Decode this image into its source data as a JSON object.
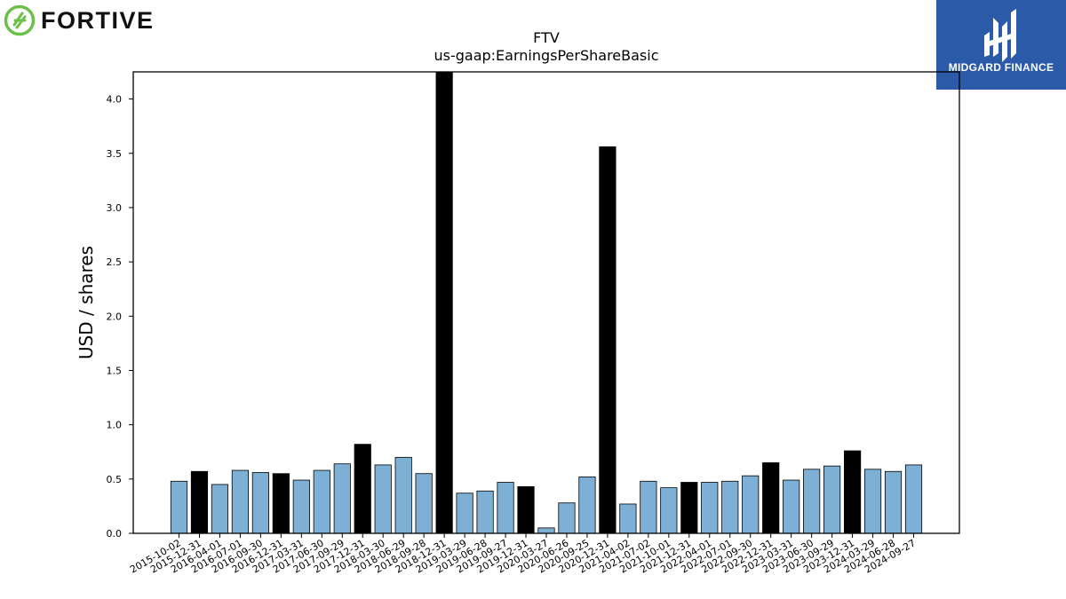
{
  "brand": {
    "logo_text": "FORTIVE",
    "logo_color": "#6cc04a"
  },
  "badge": {
    "text": "MIDGARD FINANCE",
    "color": "#2b5aa8"
  },
  "chart_data": {
    "type": "bar",
    "title": "FTV",
    "subtitle": "us-gaap:EarningsPerShareBasic",
    "ylabel": "USD / shares",
    "xlabel": "",
    "ylim": [
      0,
      4.25
    ],
    "yticks": [
      "0.0",
      "0.5",
      "1.0",
      "1.5",
      "2.0",
      "2.5",
      "3.0",
      "3.5",
      "4.0"
    ],
    "colors": {
      "quarter": "#7eb0d5",
      "annual": "#000000",
      "edge": "#000000"
    },
    "categories": [
      "2015-10-02",
      "2015-12-31",
      "2016-04-01",
      "2016-07-01",
      "2016-09-30",
      "2016-12-31",
      "2017-03-31",
      "2017-06-30",
      "2017-09-29",
      "2017-12-31",
      "2018-03-30",
      "2018-06-29",
      "2018-09-28",
      "2018-12-31",
      "2019-03-29",
      "2019-06-28",
      "2019-09-27",
      "2019-12-31",
      "2020-03-27",
      "2020-06-26",
      "2020-09-25",
      "2020-12-31",
      "2021-04-02",
      "2021-07-02",
      "2021-10-01",
      "2021-12-31",
      "2022-04-01",
      "2022-07-01",
      "2022-09-30",
      "2022-12-31",
      "2023-03-31",
      "2023-06-30",
      "2023-09-29",
      "2023-12-31",
      "2024-03-29",
      "2024-06-28",
      "2024-09-27"
    ],
    "values": [
      0.48,
      0.57,
      0.45,
      0.58,
      0.56,
      0.55,
      0.49,
      0.58,
      0.64,
      0.82,
      0.63,
      0.7,
      0.55,
      4.25,
      0.37,
      0.39,
      0.47,
      0.43,
      0.05,
      0.28,
      0.52,
      3.56,
      0.27,
      0.48,
      0.42,
      0.47,
      0.47,
      0.48,
      0.53,
      0.65,
      0.49,
      0.59,
      0.62,
      0.76,
      0.59,
      0.57,
      0.63
    ],
    "annual": [
      false,
      true,
      false,
      false,
      false,
      true,
      false,
      false,
      false,
      true,
      false,
      false,
      false,
      true,
      false,
      false,
      false,
      true,
      false,
      false,
      false,
      true,
      false,
      false,
      false,
      true,
      false,
      false,
      false,
      true,
      false,
      false,
      false,
      true,
      false,
      false,
      false
    ]
  }
}
